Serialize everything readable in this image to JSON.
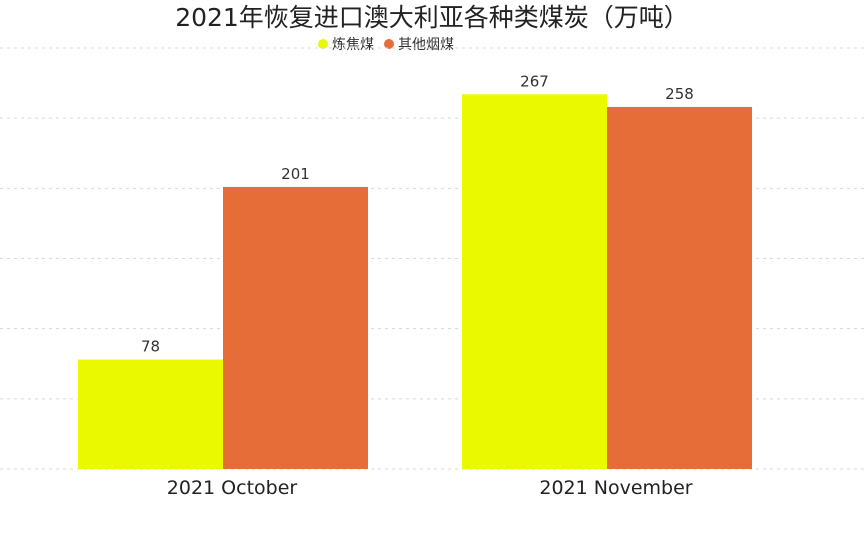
{
  "chart_data": {
    "type": "bar",
    "title": "2021年恢复进口澳大利亚各种类煤炭（万吨）",
    "categories": [
      "2021 October",
      "2021 November"
    ],
    "series": [
      {
        "name": "炼焦煤",
        "values": [
          78,
          267
        ],
        "color": "#ebf900"
      },
      {
        "name": "其他烟煤",
        "values": [
          201,
          258
        ],
        "color": "#e66d38"
      }
    ],
    "ylim": [
      0,
      300
    ],
    "grid": true,
    "legend_position": "top-center"
  }
}
